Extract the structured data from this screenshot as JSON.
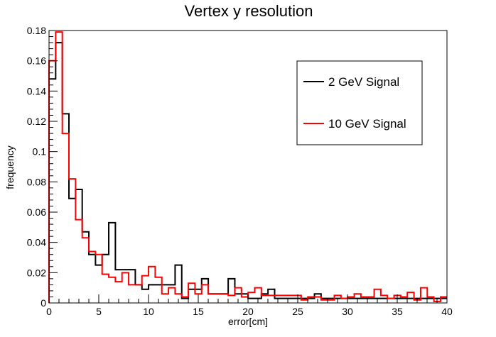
{
  "chart_data": {
    "type": "step",
    "title": "Vertex y resolution",
    "xlabel": "error[cm]",
    "ylabel": "frequency",
    "xlim": [
      0,
      40
    ],
    "ylim": [
      0,
      0.18
    ],
    "x_ticks": [
      0,
      5,
      10,
      15,
      20,
      25,
      30,
      35,
      40
    ],
    "x_tick_labels": [
      "0",
      "5",
      "10",
      "15",
      "20",
      "25",
      "30",
      "35",
      "40"
    ],
    "y_ticks": [
      0,
      0.02,
      0.04,
      0.06,
      0.08,
      0.1,
      0.12,
      0.14,
      0.16,
      0.18
    ],
    "y_tick_labels": [
      "0",
      "0.02",
      "0.04",
      "0.06",
      "0.08",
      "0.1",
      "0.12",
      "0.14",
      "0.16",
      "0.18"
    ],
    "bin_width": 0.667,
    "grid": false,
    "legend_position": "top-right",
    "series": [
      {
        "name": "2 GeV Signal",
        "color": "#000000",
        "values": [
          0.148,
          0.172,
          0.125,
          0.069,
          0.075,
          0.047,
          0.032,
          0.025,
          0.032,
          0.053,
          0.022,
          0.022,
          0.022,
          0.012,
          0.009,
          0.012,
          0.012,
          0.012,
          0.012,
          0.025,
          0.003,
          0.009,
          0.009,
          0.016,
          0.006,
          0.006,
          0.006,
          0.016,
          0.006,
          0.006,
          0.003,
          0.003,
          0.006,
          0.009,
          0.003,
          0.003,
          0.003,
          0.003,
          0.003,
          0.003,
          0.006,
          0.003,
          0.003,
          0.003,
          0.003,
          0.003,
          0.003,
          0.003,
          0.003,
          0.003,
          0.003,
          0.003,
          0.003,
          0.003,
          0.003,
          0.003,
          0.003,
          0.003,
          0.003,
          0.003
        ]
      },
      {
        "name": "10 GeV Signal",
        "color": "#ff0000",
        "values": [
          0.16,
          0.179,
          0.112,
          0.082,
          0.055,
          0.043,
          0.034,
          0.032,
          0.019,
          0.017,
          0.014,
          0.02,
          0.012,
          0.012,
          0.018,
          0.024,
          0.017,
          0.006,
          0.01,
          0.006,
          0.004,
          0.013,
          0.006,
          0.012,
          0.006,
          0.006,
          0.006,
          0.005,
          0.01,
          0.004,
          0.007,
          0.01,
          0.005,
          0.005,
          0.005,
          0.005,
          0.005,
          0.005,
          0.002,
          0.004,
          0.004,
          0.002,
          0.002,
          0.005,
          0.003,
          0.004,
          0.006,
          0.004,
          0.004,
          0.009,
          0.005,
          0.003,
          0.005,
          0.004,
          0.007,
          0.002,
          0.01,
          0.004,
          0.001,
          0.004
        ]
      }
    ]
  }
}
